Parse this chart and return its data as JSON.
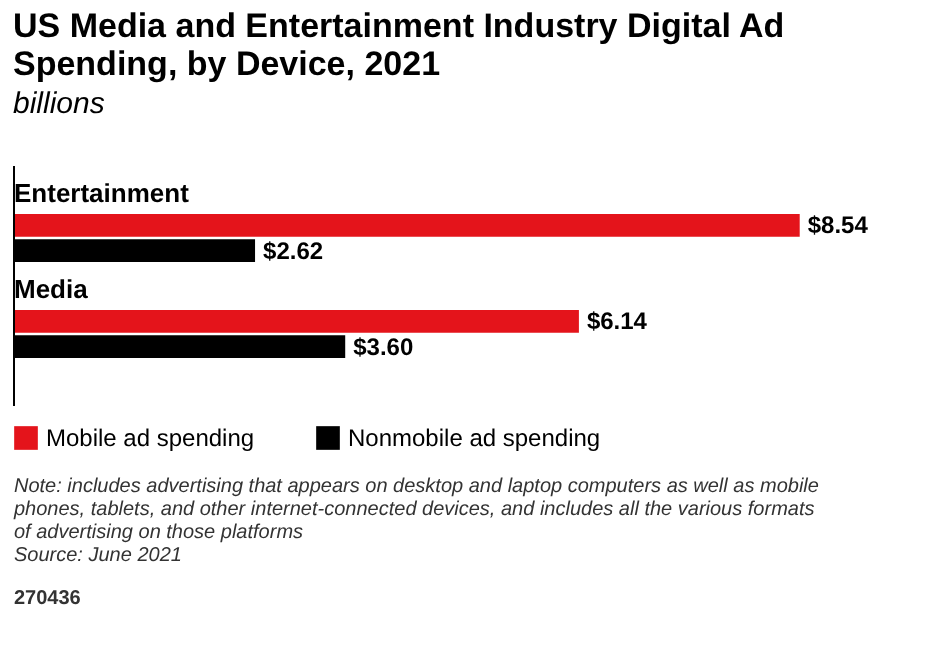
{
  "chart_data": {
    "type": "bar",
    "orientation": "horizontal",
    "title": "US Media and Entertainment Industry Digital Ad Spending, by Device, 2021",
    "subtitle": "billions",
    "categories": [
      "Entertainment",
      "Media"
    ],
    "series": [
      {
        "name": "Mobile ad spending",
        "color": "#e4141b",
        "values": [
          8.54,
          6.14
        ],
        "value_labels": [
          "$8.54",
          "$6.14"
        ]
      },
      {
        "name": "Nonmobile ad spending",
        "color": "#000000",
        "values": [
          2.62,
          3.6
        ],
        "value_labels": [
          "$2.62",
          "$3.60"
        ]
      }
    ],
    "legend": "bottom",
    "annotations": [
      "Note: includes advertising that appears on desktop and laptop computers as well as mobile phones, tablets, and other internet-connected devices, and includes all the various formats of advertising on those platforms",
      "Source: June 2021",
      "270436"
    ]
  }
}
